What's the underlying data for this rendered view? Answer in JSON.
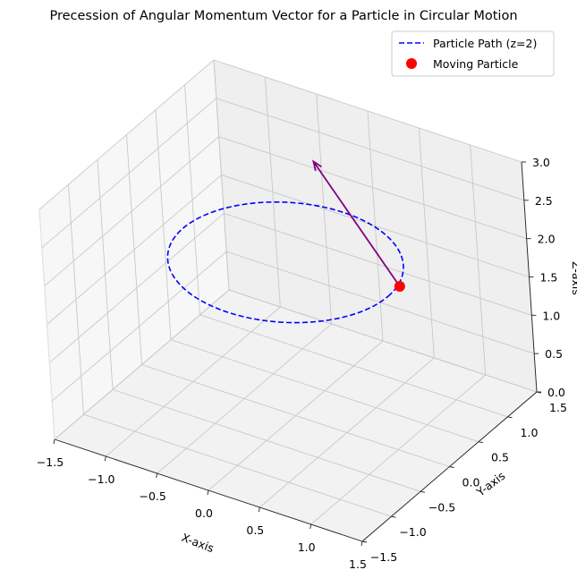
{
  "chart_data": {
    "type": "line",
    "projection": "3d",
    "title": "Precession of Angular Momentum Vector for a Particle in Circular Motion",
    "xlabel": "X-axis",
    "ylabel": "Y-axis",
    "zlabel": "Z-axis",
    "xlim": [
      -1.5,
      1.5
    ],
    "ylim": [
      -1.5,
      1.5
    ],
    "zlim": [
      0,
      3
    ],
    "xticks": [
      "−1.5",
      "−1.0",
      "−0.5",
      "0.0",
      "0.5",
      "1.0",
      "1.5"
    ],
    "yticks": [
      "−1.5",
      "−1.0",
      "−0.5",
      "0.0",
      "0.5",
      "1.0",
      "1.5"
    ],
    "zticks": [
      "0.0",
      "0.5",
      "1.0",
      "1.5",
      "2.0",
      "2.5",
      "3.0"
    ],
    "grid": true,
    "legend_position": "top-right",
    "series": [
      {
        "name": "Particle Path (z=2)",
        "kind": "circle",
        "radius": 1,
        "z": 2,
        "color": "#0000ff",
        "line_style": "dashed"
      },
      {
        "name": "Moving Particle",
        "kind": "point",
        "x": 1.0,
        "y": 0.2,
        "z": 2,
        "color": "#ff0000"
      },
      {
        "kind": "vector",
        "from": [
          1.0,
          0.2,
          2
        ],
        "to": [
          0.1,
          0.4,
          3.1
        ],
        "color": "#800080"
      }
    ]
  }
}
